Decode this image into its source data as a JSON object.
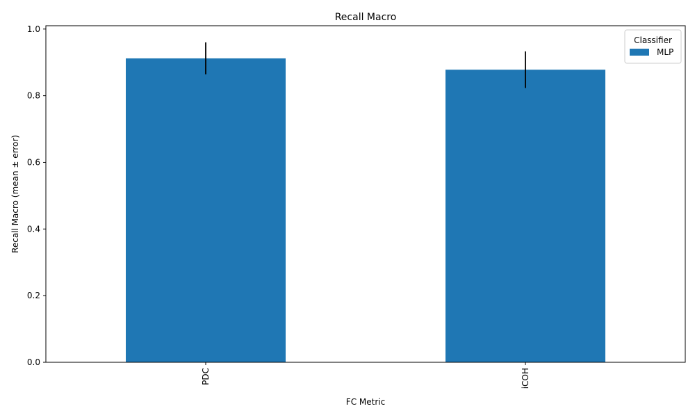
{
  "chart_data": {
    "type": "bar",
    "title": "Recall Macro",
    "xlabel": "FC Metric",
    "ylabel": "Recall Macro (mean ± error)",
    "categories": [
      "PDC",
      "iCOH"
    ],
    "series": [
      {
        "name": "MLP",
        "values": [
          0.912,
          0.878
        ],
        "errors": [
          0.048,
          0.055
        ],
        "color": "#1f77b4"
      }
    ],
    "ylim": [
      0,
      1.01
    ],
    "yticks": [
      0.0,
      0.2,
      0.4,
      0.6,
      0.8,
      1.0
    ],
    "ytick_labels": [
      "0.0",
      "0.2",
      "0.4",
      "0.6",
      "0.8",
      "1.0"
    ],
    "grid": false,
    "legend": {
      "title": "Classifier",
      "placement": "top-right"
    },
    "error_bar_color": "#000000"
  }
}
